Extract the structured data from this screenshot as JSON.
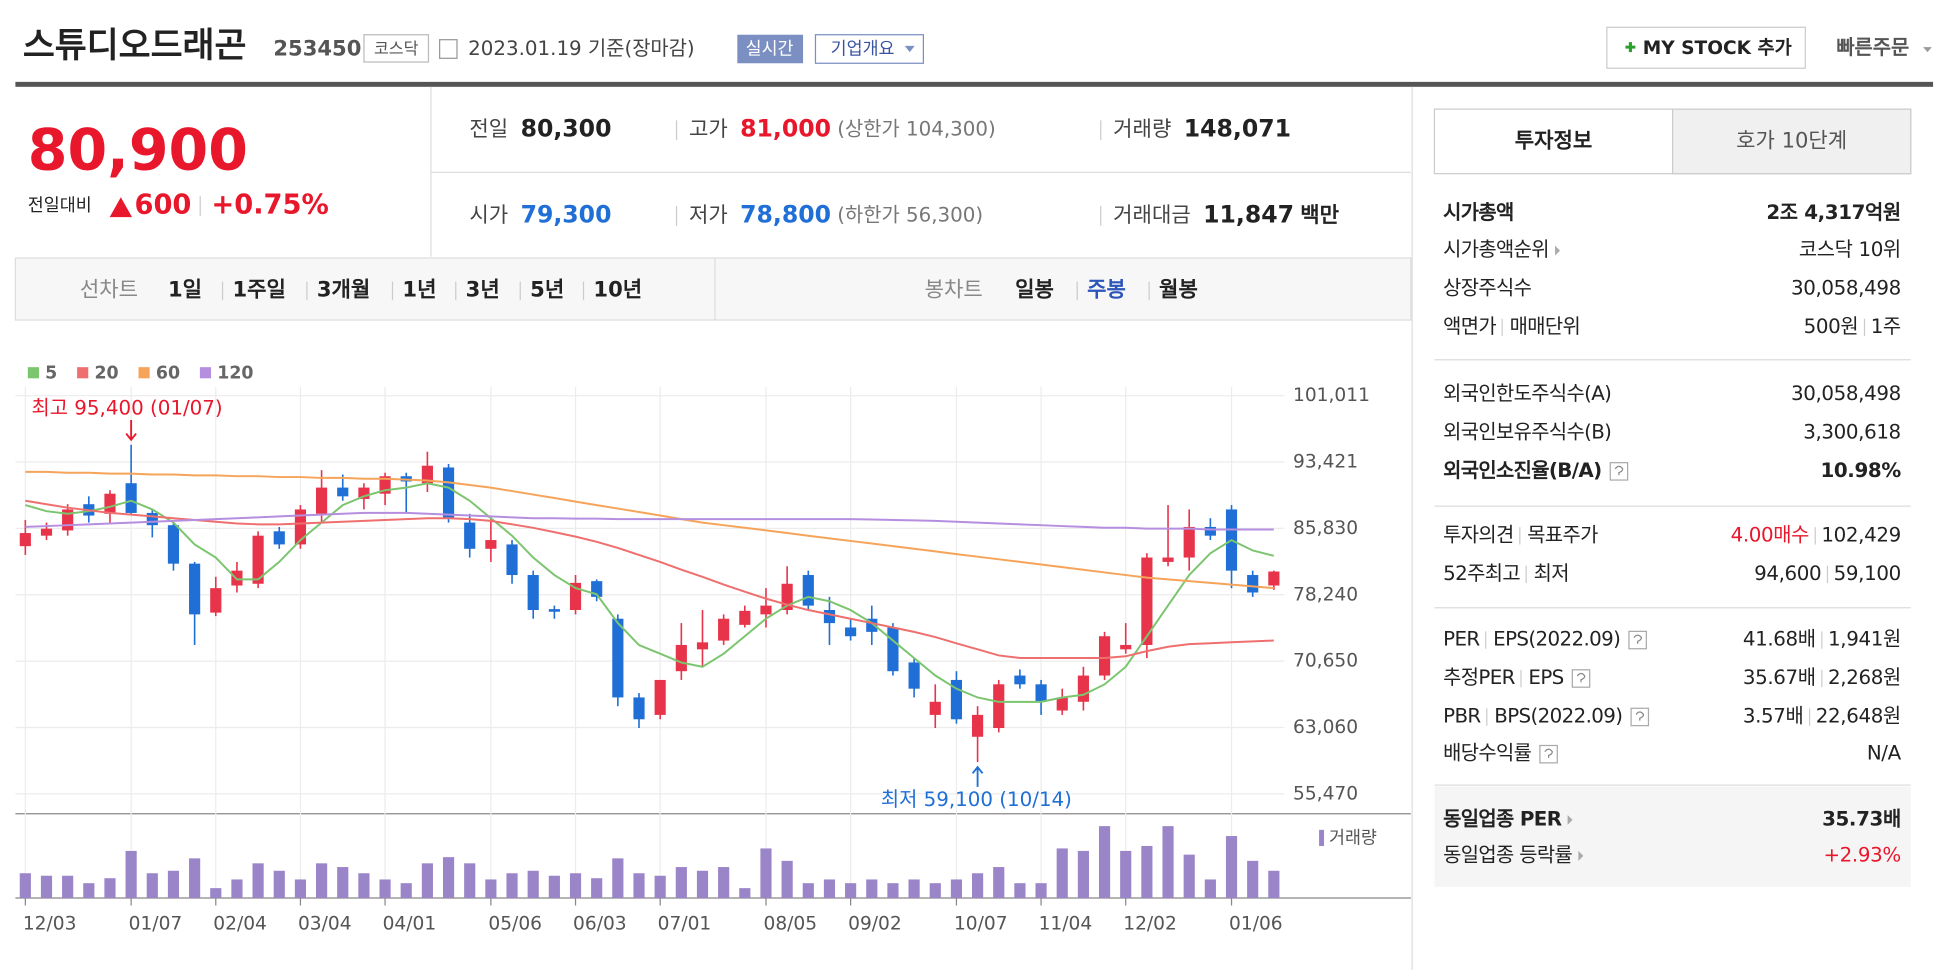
{
  "header": {
    "title": "스튜디오드래곤",
    "code": "253450",
    "market": "코스닥",
    "date": "2023.01.19 기준(장마감)",
    "realtime": "실시간",
    "company": "기업개요",
    "mystock": "MY STOCK 추가",
    "quick_order": "빠른주문"
  },
  "quote": {
    "price": "80,900",
    "change_label": "전일대비",
    "change": "600",
    "change_pct": "+0.75%",
    "fields": [
      {
        "label": "전일",
        "value": "80,300"
      },
      {
        "label": "고가",
        "value": "81,000",
        "note": "(상한가 104,300)"
      },
      {
        "label": "거래량",
        "value": "148,071"
      },
      {
        "label": "시가",
        "value": "79,300"
      },
      {
        "label": "저가",
        "value": "78,800",
        "note": "(하한가 56,300)"
      },
      {
        "label": "거래대금",
        "value": "11,847",
        "unit": "백만"
      }
    ]
  },
  "line_tabs": {
    "label": "선차트",
    "items": [
      "1일",
      "1주일",
      "3개월",
      "1년",
      "3년",
      "5년",
      "10년"
    ]
  },
  "candle_tabs": {
    "label": "봉차트",
    "items": [
      "일봉",
      "주봉",
      "월봉"
    ],
    "active": 1
  },
  "chart_data": {
    "type": "candlestick",
    "categories": [
      "12/03",
      null,
      null,
      null,
      null,
      "01/07",
      null,
      null,
      null,
      "02/04",
      null,
      null,
      null,
      "03/04",
      null,
      null,
      null,
      "04/01",
      null,
      null,
      null,
      null,
      "05/06",
      null,
      null,
      null,
      "06/03",
      null,
      null,
      null,
      "07/01",
      null,
      null,
      null,
      null,
      "08/05",
      null,
      null,
      null,
      "09/02",
      null,
      null,
      null,
      null,
      "10/07",
      null,
      null,
      null,
      "11/04",
      null,
      null,
      null,
      "12/02",
      null,
      null,
      null,
      null,
      "01/06",
      null,
      null
    ],
    "open": [
      83800,
      85000,
      85600,
      88600,
      87500,
      91000,
      87600,
      86200,
      81800,
      76200,
      79300,
      79500,
      85500,
      84000,
      87500,
      90500,
      89200,
      89800,
      91800,
      91000,
      92800,
      86500,
      83500,
      84000,
      80500,
      76600,
      76500,
      79800,
      75500,
      66500,
      64500,
      69500,
      72000,
      73000,
      74800,
      76000,
      76500,
      80500,
      76500,
      74500,
      75500,
      74500,
      70500,
      64500,
      68500,
      62000,
      63000,
      69000,
      68000,
      65000,
      66000,
      69000,
      72000,
      72500,
      82000,
      82500,
      86000,
      88000,
      80500,
      79300
    ],
    "high": [
      86800,
      86500,
      88600,
      89500,
      90200,
      95400,
      88000,
      86500,
      82000,
      80300,
      82000,
      85500,
      86000,
      88500,
      92500,
      92000,
      91000,
      92200,
      92200,
      94600,
      93200,
      87500,
      87000,
      84500,
      81000,
      77000,
      80500,
      80000,
      76000,
      67000,
      68500,
      75000,
      76500,
      76000,
      77000,
      79000,
      81500,
      81000,
      78000,
      75500,
      77000,
      75000,
      71000,
      68000,
      69500,
      65500,
      68500,
      69700,
      68500,
      67500,
      70000,
      74000,
      75000,
      83000,
      88500,
      88000,
      87000,
      88500,
      81000,
      81000
    ],
    "low": [
      82800,
      84500,
      85000,
      86500,
      86500,
      87500,
      84800,
      81000,
      72500,
      75800,
      78500,
      79000,
      83500,
      83500,
      86500,
      89000,
      88000,
      88500,
      87500,
      90000,
      86500,
      82500,
      82000,
      79500,
      75500,
      75500,
      76000,
      77500,
      65500,
      63000,
      64000,
      68500,
      70000,
      72500,
      74500,
      74500,
      76000,
      76500,
      72500,
      73000,
      72500,
      69000,
      66500,
      63000,
      63500,
      59100,
      62500,
      67500,
      64500,
      64500,
      65000,
      68500,
      71500,
      71000,
      81500,
      81000,
      84500,
      79000,
      78000,
      78800
    ],
    "close": [
      85300,
      85800,
      88000,
      87300,
      89800,
      87600,
      86200,
      81800,
      76000,
      79000,
      81000,
      85000,
      84000,
      88000,
      90500,
      89500,
      90500,
      91800,
      91200,
      93000,
      87000,
      83500,
      84500,
      80500,
      76500,
      76300,
      79600,
      78000,
      66500,
      64000,
      68500,
      72500,
      72800,
      75500,
      76400,
      77000,
      79500,
      77000,
      75000,
      73500,
      74000,
      69500,
      67500,
      66000,
      64000,
      64500,
      68000,
      68000,
      66000,
      66500,
      69000,
      73500,
      72500,
      82500,
      82500,
      86000,
      85000,
      81000,
      78500,
      80900
    ],
    "up_color": "#e8344a",
    "down_color": "#1f6fd6",
    "series": [
      {
        "name": "5",
        "color": "#7cc56f",
        "values": [
          88500,
          87800,
          87500,
          87800,
          88300,
          89000,
          88000,
          86500,
          84000,
          82500,
          80000,
          80000,
          82000,
          84500,
          86500,
          88500,
          89500,
          90200,
          90500,
          91000,
          90500,
          89000,
          87000,
          85000,
          82500,
          80500,
          79000,
          78300,
          75000,
          72500,
          71500,
          70500,
          70000,
          71500,
          73500,
          75500,
          77000,
          78000,
          77500,
          76500,
          75000,
          73000,
          71000,
          69000,
          67500,
          66500,
          66000,
          66000,
          66000,
          66500,
          66800,
          68000,
          70000,
          73500,
          77000,
          80500,
          83000,
          84500,
          83300,
          82700
        ]
      },
      {
        "name": "20",
        "color": "#ef6f6f",
        "values": [
          89000,
          88600,
          88200,
          87900,
          87600,
          87400,
          87200,
          87000,
          86800,
          86600,
          86400,
          86300,
          86300,
          86400,
          86500,
          86600,
          86700,
          86800,
          86900,
          87000,
          87000,
          86900,
          86700,
          86300,
          85900,
          85400,
          84900,
          84300,
          83600,
          82800,
          82000,
          81100,
          80300,
          79400,
          78600,
          77800,
          77100,
          76500,
          76000,
          75500,
          75000,
          74500,
          74000,
          73400,
          72700,
          72000,
          71300,
          71000,
          71000,
          71000,
          71000,
          71000,
          71200,
          71800,
          72300,
          72600,
          72700,
          72800,
          72900,
          73000
        ]
      },
      {
        "name": "60",
        "color": "#f5a45a",
        "values": [
          92300,
          92300,
          92200,
          92200,
          92100,
          92100,
          92000,
          92000,
          91900,
          91900,
          91800,
          91800,
          91700,
          91700,
          91600,
          91600,
          91500,
          91500,
          91400,
          91300,
          91100,
          90800,
          90500,
          90100,
          89700,
          89300,
          88900,
          88500,
          88100,
          87700,
          87300,
          86900,
          86500,
          86200,
          85900,
          85600,
          85300,
          85000,
          84700,
          84400,
          84100,
          83800,
          83500,
          83200,
          82900,
          82600,
          82300,
          82000,
          81700,
          81400,
          81100,
          80800,
          80500,
          80200,
          80000,
          79800,
          79600,
          79400,
          79200,
          79000
        ]
      },
      {
        "name": "120",
        "color": "#b58ee0",
        "values": [
          86000,
          86100,
          86200,
          86300,
          86400,
          86500,
          86600,
          86700,
          86800,
          86900,
          87000,
          87100,
          87200,
          87300,
          87400,
          87500,
          87600,
          87600,
          87600,
          87500,
          87400,
          87300,
          87200,
          87100,
          87000,
          87000,
          86950,
          86950,
          86900,
          86900,
          86900,
          86900,
          86900,
          86900,
          86900,
          86900,
          86900,
          86900,
          86900,
          86900,
          86850,
          86800,
          86750,
          86700,
          86600,
          86500,
          86400,
          86300,
          86200,
          86100,
          86000,
          85900,
          85900,
          85800,
          85800,
          85800,
          85700,
          85700,
          85700,
          85700
        ]
      }
    ],
    "ylim": [
      55470,
      101011
    ],
    "yticks": [
      {
        "value": 55470,
        "label": "55,470"
      },
      {
        "value": 63060,
        "label": "63,060"
      },
      {
        "value": 70650,
        "label": "70,650"
      },
      {
        "value": 78240,
        "label": "78,240"
      },
      {
        "value": 85830,
        "label": "85,830"
      },
      {
        "value": 93421,
        "label": "93,421"
      },
      {
        "value": 101011,
        "label": "101,011"
      }
    ],
    "grid": true,
    "annotations": [
      {
        "text": "최고 95,400 (01/07)",
        "index": 5,
        "value": 95400
      },
      {
        "text": "최저 59,100 (10/14)",
        "index": 45,
        "value": 59100
      }
    ],
    "volume": {
      "name": "거래량",
      "color": "#9b85c9",
      "ylim": [
        0,
        60
      ],
      "values": [
        20,
        18,
        18,
        12,
        16,
        38,
        20,
        22,
        32,
        8,
        15,
        28,
        22,
        15,
        28,
        25,
        20,
        15,
        12,
        28,
        33,
        28,
        15,
        20,
        22,
        18,
        20,
        16,
        32,
        20,
        18,
        25,
        22,
        25,
        8,
        40,
        30,
        12,
        15,
        12,
        15,
        12,
        15,
        12,
        15,
        20,
        25,
        12,
        12,
        40,
        38,
        58,
        38,
        42,
        58,
        35,
        15,
        50,
        30,
        22
      ]
    }
  },
  "info": {
    "tabs": [
      "투자정보",
      "호가 10단계"
    ],
    "groups": [
      {
        "rows": [
          {
            "label": [
              "시가총액"
            ],
            "value": [
              "2조 4,317억원"
            ]
          },
          {
            "label": [
              "시가총액순위"
            ],
            "value": [
              "코스닥 10위"
            ]
          },
          {
            "label": [
              "상장주식수"
            ],
            "value": [
              "30,058,498"
            ]
          },
          {
            "label": [
              "액면가",
              "매매단위"
            ],
            "value": [
              "500원",
              "1주"
            ]
          }
        ]
      },
      {
        "rows": [
          {
            "label": [
              "외국인한도주식수(A)"
            ],
            "value": [
              "30,058,498"
            ]
          },
          {
            "label": [
              "외국인보유주식수(B)"
            ],
            "value": [
              "3,300,618"
            ]
          },
          {
            "label": [
              "외국인소진율(B/A)"
            ],
            "value": [
              "10.98%"
            ]
          }
        ]
      },
      {
        "rows": [
          {
            "label": [
              "투자의견",
              "목표주가"
            ],
            "value": [
              "4.00매수",
              "102,429"
            ]
          },
          {
            "label": [
              "52주최고",
              "최저"
            ],
            "value": [
              "94,600",
              "59,100"
            ]
          }
        ]
      },
      {
        "rows": [
          {
            "label": [
              "PER",
              "EPS(2022.09)"
            ],
            "value": [
              "41.68배",
              "1,941원"
            ]
          },
          {
            "label": [
              "추정PER",
              "EPS"
            ],
            "value": [
              "35.67배",
              "2,268원"
            ]
          },
          {
            "label": [
              "PBR",
              "BPS(2022.09)"
            ],
            "value": [
              "3.57배",
              "22,648원"
            ]
          },
          {
            "label": [
              "배당수익률"
            ],
            "value": [
              "N/A"
            ]
          }
        ]
      },
      {
        "rows": [
          {
            "label": [
              "동일업종 PER"
            ],
            "value": [
              "35.73배"
            ]
          },
          {
            "label": [
              "동일업종 등락률"
            ],
            "value": [
              "+2.93%"
            ]
          }
        ]
      }
    ]
  }
}
